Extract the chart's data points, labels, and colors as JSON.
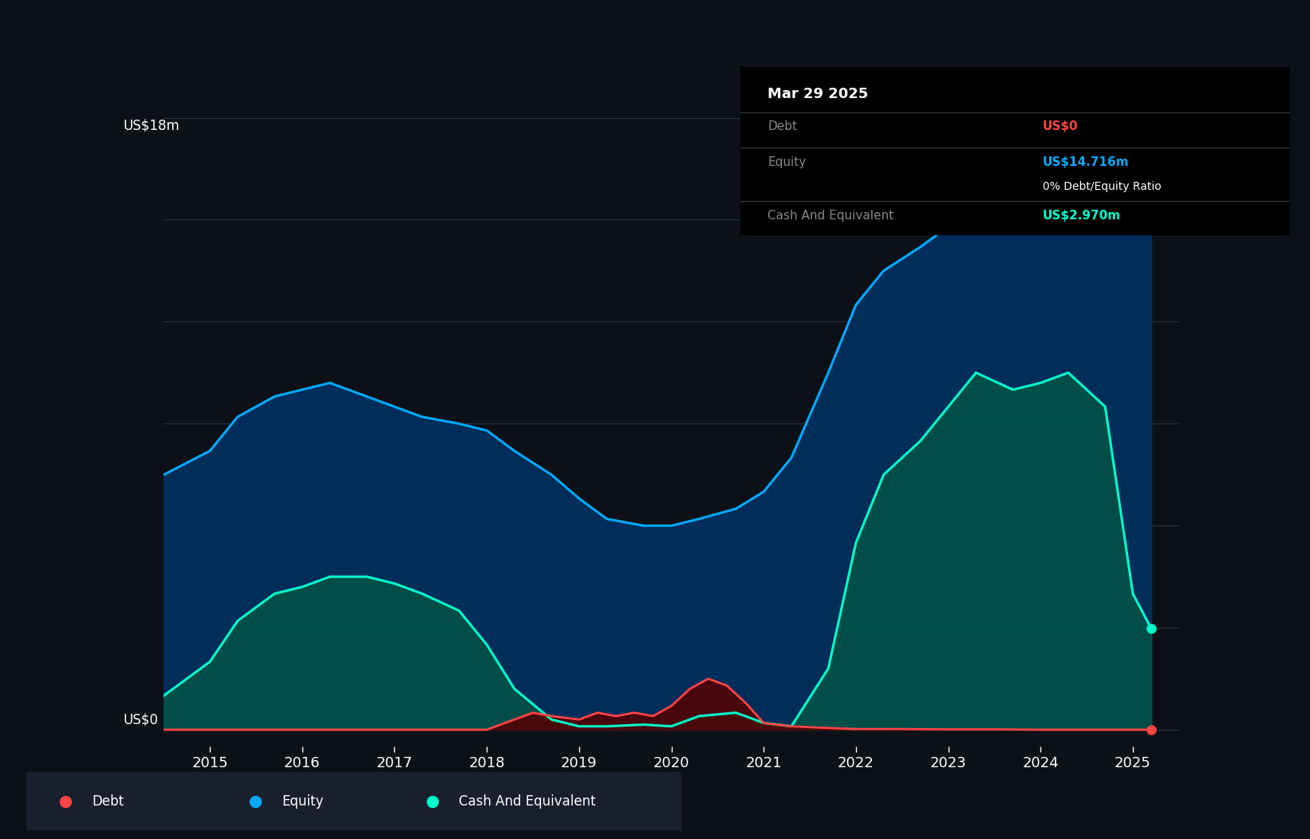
{
  "background_color": "#0d1117",
  "plot_bg_color": "#0d1117",
  "grid_color": "#2a3040",
  "ylabel_top": "US$18m",
  "ylabel_bottom": "US$0",
  "x_ticks": [
    2015,
    2016,
    2017,
    2018,
    2019,
    2020,
    2021,
    2022,
    2023,
    2024,
    2025
  ],
  "xlim": [
    2014.5,
    2025.5
  ],
  "ylim": [
    -0.5,
    18.5
  ],
  "y_gridlines": [
    0,
    3,
    6,
    9,
    12,
    15,
    18
  ],
  "equity_color": "#00aaff",
  "equity_fill": "#003366",
  "debt_color": "#ff4444",
  "cash_color": "#00ffcc",
  "cash_fill": "#005544",
  "legend_items": [
    "Debt",
    "Equity",
    "Cash And Equivalent"
  ],
  "legend_colors": [
    "#ff4444",
    "#00aaff",
    "#00ffcc"
  ],
  "tooltip_title": "Mar 29 2025",
  "tooltip_debt_label": "Debt",
  "tooltip_debt_value": "US$0",
  "tooltip_equity_label": "Equity",
  "tooltip_equity_value": "US$14.716m",
  "tooltip_ratio": "0% Debt/Equity Ratio",
  "tooltip_cash_label": "Cash And Equivalent",
  "tooltip_cash_value": "US$2.970m",
  "equity_x": [
    2014.5,
    2015.0,
    2015.3,
    2015.7,
    2016.0,
    2016.3,
    2016.7,
    2017.0,
    2017.3,
    2017.7,
    2018.0,
    2018.3,
    2018.7,
    2019.0,
    2019.3,
    2019.7,
    2020.0,
    2020.3,
    2020.7,
    2021.0,
    2021.3,
    2021.7,
    2022.0,
    2022.3,
    2022.7,
    2023.0,
    2023.3,
    2023.7,
    2024.0,
    2024.3,
    2024.7,
    2025.0,
    2025.2
  ],
  "equity_y": [
    7.5,
    8.2,
    9.2,
    9.8,
    10.0,
    10.2,
    9.8,
    9.5,
    9.2,
    9.0,
    8.8,
    8.2,
    7.5,
    6.8,
    6.2,
    6.0,
    6.0,
    6.2,
    6.5,
    7.0,
    8.0,
    10.5,
    12.5,
    13.5,
    14.2,
    14.8,
    15.5,
    16.5,
    17.2,
    17.5,
    17.0,
    15.0,
    14.716
  ],
  "cash_x": [
    2014.5,
    2015.0,
    2015.3,
    2015.7,
    2016.0,
    2016.3,
    2016.7,
    2017.0,
    2017.3,
    2017.7,
    2018.0,
    2018.3,
    2018.7,
    2019.0,
    2019.3,
    2019.7,
    2020.0,
    2020.3,
    2020.7,
    2021.0,
    2021.3,
    2021.7,
    2022.0,
    2022.3,
    2022.7,
    2023.0,
    2023.3,
    2023.7,
    2024.0,
    2024.3,
    2024.7,
    2025.0,
    2025.2
  ],
  "cash_y": [
    1.0,
    2.0,
    3.2,
    4.0,
    4.2,
    4.5,
    4.5,
    4.3,
    4.0,
    3.5,
    2.5,
    1.2,
    0.3,
    0.1,
    0.1,
    0.15,
    0.1,
    0.4,
    0.5,
    0.2,
    0.1,
    1.8,
    5.5,
    7.5,
    8.5,
    9.5,
    10.5,
    10.0,
    10.2,
    10.5,
    9.5,
    4.0,
    2.97
  ],
  "debt_x": [
    2014.5,
    2015.0,
    2015.5,
    2016.0,
    2016.5,
    2017.0,
    2017.5,
    2018.0,
    2018.3,
    2018.5,
    2018.7,
    2019.0,
    2019.2,
    2019.4,
    2019.6,
    2019.8,
    2020.0,
    2020.2,
    2020.4,
    2020.6,
    2020.8,
    2021.0,
    2021.3,
    2021.7,
    2022.0,
    2022.5,
    2023.0,
    2023.5,
    2024.0,
    2024.5,
    2025.0,
    2025.2
  ],
  "debt_y": [
    0.0,
    0.0,
    0.0,
    0.0,
    0.0,
    0.0,
    0.0,
    0.0,
    0.3,
    0.5,
    0.4,
    0.3,
    0.5,
    0.4,
    0.5,
    0.4,
    0.7,
    1.2,
    1.5,
    1.3,
    0.8,
    0.2,
    0.1,
    0.05,
    0.02,
    0.02,
    0.01,
    0.01,
    0.0,
    0.0,
    0.0,
    0.0
  ]
}
